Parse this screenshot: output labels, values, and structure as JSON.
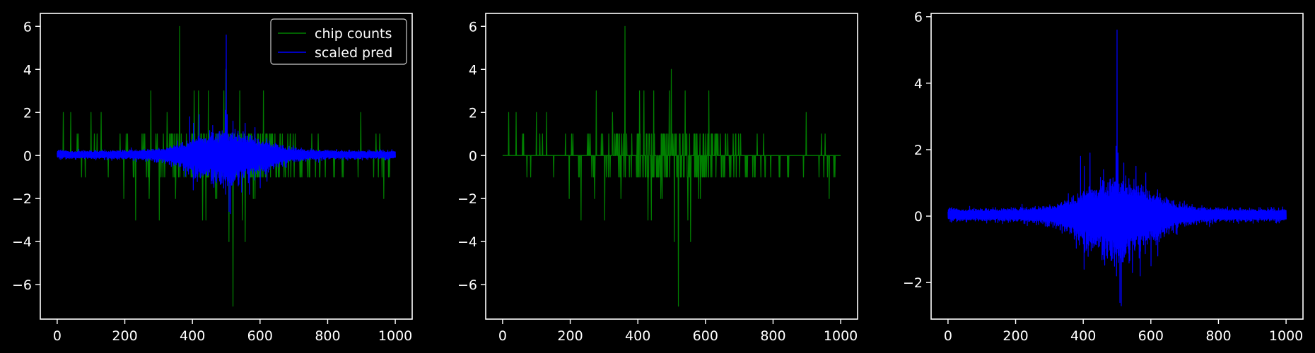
{
  "colors": {
    "background": "#000000",
    "axes": "#ffffff",
    "chip": "#008000",
    "pred": "#0000ff"
  },
  "chart_data": [
    {
      "type": "line",
      "xlim": [
        -50,
        1050
      ],
      "ylim": [
        -7.6,
        6.6
      ],
      "xticks": [
        0,
        200,
        400,
        600,
        800,
        1000
      ],
      "yticks": [
        -6,
        -4,
        -2,
        0,
        2,
        4,
        6
      ],
      "legend_position": "top-right",
      "series": [
        {
          "name": "chip counts",
          "color": "#008000",
          "kind": "counts"
        },
        {
          "name": "scaled pred",
          "color": "#0000ff",
          "kind": "pred"
        }
      ],
      "legend": [
        "chip counts",
        "scaled pred"
      ]
    },
    {
      "type": "line",
      "xlim": [
        -50,
        1050
      ],
      "ylim": [
        -7.6,
        6.6
      ],
      "xticks": [
        0,
        200,
        400,
        600,
        800,
        1000
      ],
      "yticks": [
        -6,
        -4,
        -2,
        0,
        2,
        4,
        6
      ],
      "series": [
        {
          "color": "#008000",
          "kind": "counts"
        }
      ]
    },
    {
      "type": "line",
      "xlim": [
        -50,
        1050
      ],
      "ylim": [
        -3.1,
        6.1
      ],
      "xticks": [
        0,
        200,
        400,
        600,
        800,
        1000
      ],
      "yticks": [
        -2,
        0,
        2,
        4,
        6
      ],
      "series": [
        {
          "color": "#0000ff",
          "kind": "pred"
        }
      ]
    }
  ],
  "counts_spikes": [
    {
      "x": 362,
      "y": 6
    },
    {
      "x": 520,
      "y": -7
    },
    {
      "x": 508,
      "y": -4
    },
    {
      "x": 556,
      "y": -4
    },
    {
      "x": 499,
      "y": 4
    },
    {
      "x": 277,
      "y": 3
    },
    {
      "x": 405,
      "y": 3
    },
    {
      "x": 418,
      "y": 3
    },
    {
      "x": 447,
      "y": 3
    },
    {
      "x": 493,
      "y": 3
    },
    {
      "x": 540,
      "y": 3
    },
    {
      "x": 610,
      "y": 3
    },
    {
      "x": 232,
      "y": -3
    },
    {
      "x": 302,
      "y": -3
    },
    {
      "x": 430,
      "y": -3
    },
    {
      "x": 440,
      "y": -3
    },
    {
      "x": 548,
      "y": -3
    },
    {
      "x": 18,
      "y": 2
    },
    {
      "x": 40,
      "y": 2
    },
    {
      "x": 100,
      "y": 2
    },
    {
      "x": 130,
      "y": 2
    },
    {
      "x": 325,
      "y": 2
    },
    {
      "x": 898,
      "y": 2
    },
    {
      "x": 197,
      "y": -2
    },
    {
      "x": 272,
      "y": -2
    },
    {
      "x": 350,
      "y": -2
    },
    {
      "x": 468,
      "y": -2
    },
    {
      "x": 472,
      "y": -2
    },
    {
      "x": 580,
      "y": -2
    },
    {
      "x": 585,
      "y": -2
    },
    {
      "x": 966,
      "y": -2
    }
  ]
}
